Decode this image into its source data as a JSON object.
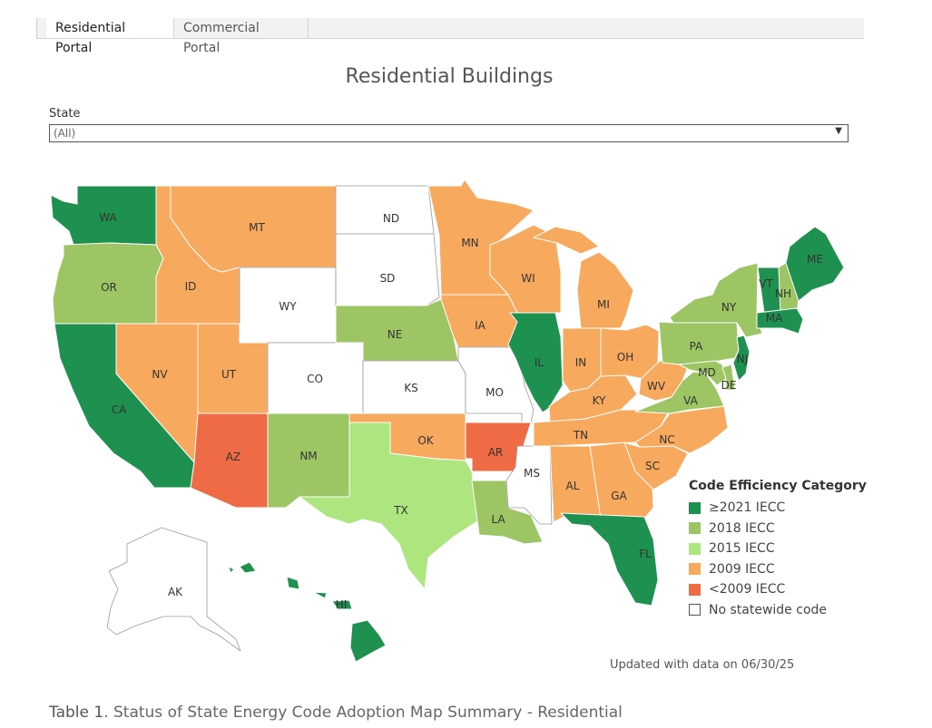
{
  "tabs": [
    {
      "label": "Residential Portal",
      "active": true
    },
    {
      "label": "Commercial Portal",
      "active": false
    }
  ],
  "title": "Residential Buildings",
  "filter": {
    "label": "State",
    "value": "(All)"
  },
  "legend": {
    "title": "Code Efficiency Category",
    "items": [
      {
        "label": "≥2021 IECC",
        "color": "#1e9150"
      },
      {
        "label": "2018 IECC",
        "color": "#9dc563"
      },
      {
        "label": "2015 IECC",
        "color": "#ade67e"
      },
      {
        "label": "2009 IECC",
        "color": "#f7a95e"
      },
      {
        "label": "<2009 IECC",
        "color": "#ef6b45"
      },
      {
        "label": "No statewide code",
        "color": "#ffffff"
      }
    ]
  },
  "states": [
    {
      "abbr": "WA",
      "category": "≥2021 IECC"
    },
    {
      "abbr": "OR",
      "category": "2018 IECC"
    },
    {
      "abbr": "CA",
      "category": "≥2021 IECC"
    },
    {
      "abbr": "NV",
      "category": "2009 IECC"
    },
    {
      "abbr": "ID",
      "category": "2009 IECC"
    },
    {
      "abbr": "MT",
      "category": "2009 IECC"
    },
    {
      "abbr": "WY",
      "category": "No statewide code"
    },
    {
      "abbr": "UT",
      "category": "2009 IECC"
    },
    {
      "abbr": "CO",
      "category": "No statewide code"
    },
    {
      "abbr": "AZ",
      "category": "<2009 IECC"
    },
    {
      "abbr": "NM",
      "category": "2018 IECC"
    },
    {
      "abbr": "ND",
      "category": "No statewide code"
    },
    {
      "abbr": "SD",
      "category": "No statewide code"
    },
    {
      "abbr": "NE",
      "category": "2018 IECC"
    },
    {
      "abbr": "KS",
      "category": "No statewide code"
    },
    {
      "abbr": "OK",
      "category": "2009 IECC"
    },
    {
      "abbr": "TX",
      "category": "2015 IECC"
    },
    {
      "abbr": "MN",
      "category": "2009 IECC"
    },
    {
      "abbr": "IA",
      "category": "2009 IECC"
    },
    {
      "abbr": "MO",
      "category": "No statewide code"
    },
    {
      "abbr": "AR",
      "category": "<2009 IECC"
    },
    {
      "abbr": "LA",
      "category": "2018 IECC"
    },
    {
      "abbr": "WI",
      "category": "2009 IECC"
    },
    {
      "abbr": "IL",
      "category": "≥2021 IECC"
    },
    {
      "abbr": "MS",
      "category": "No statewide code"
    },
    {
      "abbr": "MI",
      "category": "2009 IECC"
    },
    {
      "abbr": "IN",
      "category": "2009 IECC"
    },
    {
      "abbr": "KY",
      "category": "2009 IECC"
    },
    {
      "abbr": "TN",
      "category": "2009 IECC"
    },
    {
      "abbr": "AL",
      "category": "2009 IECC"
    },
    {
      "abbr": "GA",
      "category": "2009 IECC"
    },
    {
      "abbr": "FL",
      "category": "≥2021 IECC"
    },
    {
      "abbr": "OH",
      "category": "2009 IECC"
    },
    {
      "abbr": "WV",
      "category": "2009 IECC"
    },
    {
      "abbr": "VA",
      "category": "2018 IECC"
    },
    {
      "abbr": "NC",
      "category": "2009 IECC"
    },
    {
      "abbr": "SC",
      "category": "2009 IECC"
    },
    {
      "abbr": "PA",
      "category": "2018 IECC"
    },
    {
      "abbr": "NY",
      "category": "2018 IECC"
    },
    {
      "abbr": "NJ",
      "category": "≥2021 IECC"
    },
    {
      "abbr": "MD",
      "category": "2018 IECC"
    },
    {
      "abbr": "DE",
      "category": "2018 IECC"
    },
    {
      "abbr": "VT",
      "category": "≥2021 IECC"
    },
    {
      "abbr": "NH",
      "category": "2018 IECC"
    },
    {
      "abbr": "MA",
      "category": "≥2021 IECC"
    },
    {
      "abbr": "ME",
      "category": "≥2021 IECC"
    },
    {
      "abbr": "AK",
      "category": "No statewide code"
    },
    {
      "abbr": "HI",
      "category": "≥2021 IECC"
    }
  ],
  "updated": "Updated with data on 06/30/25",
  "caption": {
    "bold": "Table 1",
    "text": ". Status of State Energy Code Adoption Map Summary - Residential"
  }
}
